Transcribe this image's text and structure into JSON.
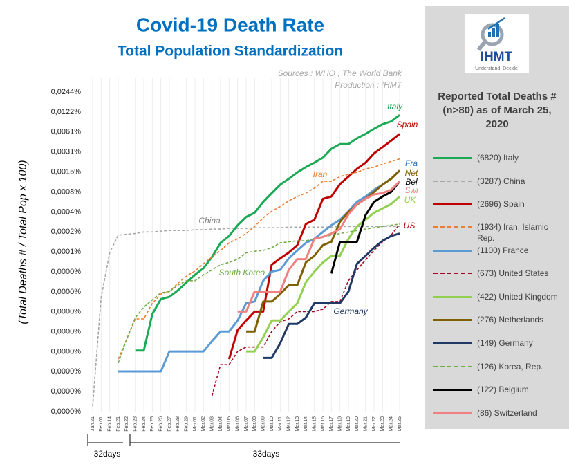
{
  "header": {
    "title": "Covid-19 Death Rate",
    "subtitle": "Total Population Standardization",
    "sources": "Sources : WHO ; The World Bank",
    "production": "Production : IHMT"
  },
  "logo": {
    "name": "IHMT",
    "tagline": "Understand, Decide"
  },
  "legend_title": "Reported Total Deaths # (n>80) as of March 25, 2020",
  "periods": [
    "32days",
    "33days"
  ],
  "chart_data": {
    "type": "line",
    "log_scale": true,
    "grid": "x",
    "y_label": "(Total Deaths # / Total Pop x 100)",
    "categories": [
      "Jan.21",
      "Feb.01",
      "Feb.14",
      "Feb.21",
      "Feb.22",
      "Feb.23",
      "Feb.24",
      "Feb.25",
      "Feb.26",
      "Feb.27",
      "Feb.28",
      "Feb.29",
      "Mar.01",
      "Mar.02",
      "Mar.03",
      "Mar.04",
      "Mar.05",
      "Mar.06",
      "Mar.07",
      "Mar.08",
      "Mar.09",
      "Mar.10",
      "Mar.11",
      "Mar.12",
      "Mar.13",
      "Mar.14",
      "Mar.15",
      "Mar.16",
      "Mar.17",
      "Mar.18",
      "Mar.19",
      "Mar.20",
      "Mar.21",
      "Mar.22",
      "Mar.23",
      "Mar.24",
      "Mar.25"
    ],
    "ylim": [
      3.73e-07,
      0.0244
    ],
    "yticks": [
      {
        "value": 0.0244,
        "label": "0,0244%"
      },
      {
        "value": 0.0122,
        "label": "0,0122%"
      },
      {
        "value": 0.0061,
        "label": "0,0061%"
      },
      {
        "value": 0.00305,
        "label": "0,0031%"
      },
      {
        "value": 0.001525,
        "label": "0,0015%"
      },
      {
        "value": 0.00076,
        "label": "0,0008%"
      },
      {
        "value": 0.00038,
        "label": "0,0004%"
      },
      {
        "value": 0.00019,
        "label": "0,0002%"
      },
      {
        "value": 9.5e-05,
        "label": "0,0001%"
      },
      {
        "value": 4.77e-05,
        "label": "0,0000%"
      },
      {
        "value": 2.38e-05,
        "label": "0,0000%"
      },
      {
        "value": 1.19e-05,
        "label": "0,0000%"
      },
      {
        "value": 5.96e-06,
        "label": "0,0000%"
      },
      {
        "value": 2.98e-06,
        "label": "0,0000%"
      },
      {
        "value": 1.49e-06,
        "label": "0,0000%"
      },
      {
        "value": 7.45e-07,
        "label": "0,0000%"
      },
      {
        "value": 3.73e-07,
        "label": "0,0000%"
      }
    ],
    "series": [
      {
        "name": "(6820) Italy",
        "color": "#1aaa55",
        "dashed": false,
        "values": [
          null,
          null,
          null,
          null,
          null,
          3.1e-06,
          3.1e-06,
          1.1e-05,
          1.85e-05,
          2e-05,
          2.5e-05,
          3.3e-05,
          4.3e-05,
          5.4e-05,
          8e-05,
          0.00013,
          0.000165,
          0.00024,
          0.00032,
          0.00037,
          0.00054,
          0.00073,
          0.00098,
          0.0012,
          0.0015,
          0.0018,
          0.0021,
          0.0025,
          0.0034,
          0.004,
          0.004,
          0.0049,
          0.0057,
          0.0068,
          0.008,
          0.0088,
          0.011
        ]
      },
      {
        "name": "(3287) China",
        "color": "#a6a6a6",
        "dashed": true,
        "values": [
          4.5e-07,
          1.95e-05,
          9.3e-05,
          0.00017,
          0.000175,
          0.00018,
          0.00019,
          0.00019,
          0.000195,
          0.0002,
          0.0002,
          0.0002,
          0.000205,
          0.000205,
          0.00021,
          0.00021,
          0.000215,
          0.000215,
          0.000215,
          0.00022,
          0.00022,
          0.00022,
          0.00022,
          0.000225,
          0.000225,
          0.000225,
          0.000225,
          0.000225,
          0.000225,
          0.00023,
          0.00023,
          0.00023,
          0.00023,
          0.00023,
          0.00023,
          0.00023,
          0.00023
        ]
      },
      {
        "name": "(2696) Spain",
        "color": "#c00000",
        "dashed": false,
        "values": [
          null,
          null,
          null,
          null,
          null,
          null,
          null,
          null,
          null,
          null,
          null,
          null,
          null,
          null,
          null,
          null,
          2.3e-06,
          6.3e-06,
          8.8e-06,
          1.2e-05,
          1.2e-05,
          6.1e-05,
          7.6e-05,
          9.3e-05,
          0.00012,
          0.00025,
          0.00029,
          0.0006,
          0.00065,
          0.001,
          0.0013,
          0.0017,
          0.0021,
          0.0029,
          0.0036,
          0.0045,
          0.0057
        ]
      },
      {
        "name": "(1934) Iran, Islamic Rep.",
        "color": "#ed7d31",
        "dashed": true,
        "values": [
          null,
          null,
          null,
          2.3e-06,
          4.6e-06,
          9.3e-06,
          9.3e-06,
          1.6e-05,
          2.2e-05,
          2.4e-05,
          3.2e-05,
          4.1e-05,
          4.9e-05,
          6.3e-05,
          8e-05,
          0.0001,
          0.00013,
          0.00015,
          0.00018,
          0.00023,
          0.00031,
          0.00039,
          0.00046,
          0.00056,
          0.00065,
          0.00073,
          0.00087,
          0.0011,
          0.0011,
          0.0013,
          0.0014,
          0.0015,
          0.0017,
          0.0018,
          0.002,
          0.0022,
          0.0024
        ]
      },
      {
        "name": "(1100) France",
        "color": "#5b9bd5",
        "dashed": false,
        "values": [
          null,
          null,
          null,
          1.5e-06,
          1.5e-06,
          1.5e-06,
          1.5e-06,
          1.5e-06,
          1.5e-06,
          3e-06,
          3e-06,
          3e-06,
          3e-06,
          3e-06,
          4.3e-06,
          6e-06,
          6e-06,
          8.8e-06,
          1.6e-05,
          1.7e-05,
          3.5e-05,
          4.8e-05,
          5.1e-05,
          7.6e-05,
          0.0001,
          0.00013,
          0.00015,
          0.00019,
          0.00024,
          0.00029,
          0.00039,
          0.00054,
          0.00065,
          0.00082,
          0.00098,
          0.0012,
          0.0016
        ]
      },
      {
        "name": "(673) United States",
        "color": "#a50021",
        "dashed": true,
        "values": [
          null,
          null,
          null,
          null,
          null,
          null,
          null,
          null,
          null,
          null,
          null,
          null,
          null,
          null,
          6.5e-07,
          1.9e-06,
          1.9e-06,
          3e-06,
          3.5e-06,
          3.5e-06,
          3.5e-06,
          6e-06,
          8.4e-06,
          9.3e-06,
          1.2e-05,
          1.2e-05,
          1.2e-05,
          1.3e-05,
          1.7e-05,
          1.7e-05,
          3.5e-05,
          5.1e-05,
          7.2e-05,
          0.0001,
          0.000135,
          0.00017,
          0.00025
        ]
      },
      {
        "name": "(422) United Kingdom",
        "color": "#92d050",
        "dashed": false,
        "values": [
          null,
          null,
          null,
          null,
          null,
          null,
          null,
          null,
          null,
          null,
          null,
          null,
          null,
          null,
          null,
          null,
          null,
          null,
          3e-06,
          3e-06,
          4.9e-06,
          8.8e-06,
          8.8e-06,
          1.2e-05,
          1.6e-05,
          3.3e-05,
          4.8e-05,
          6.6e-05,
          8.3e-05,
          8.3e-05,
          0.00015,
          0.00023,
          0.00029,
          0.00037,
          0.00043,
          0.0005,
          0.00065
        ]
      },
      {
        "name": "(276) Netherlands",
        "color": "#7f6000",
        "dashed": false,
        "values": [
          null,
          null,
          null,
          null,
          null,
          null,
          null,
          null,
          null,
          null,
          null,
          null,
          null,
          null,
          null,
          null,
          null,
          null,
          6e-06,
          6e-06,
          1.7e-05,
          1.7e-05,
          2.2e-05,
          3e-05,
          3e-05,
          6.6e-05,
          8.3e-05,
          0.00012,
          0.000135,
          0.00027,
          0.00038,
          0.00049,
          0.0006,
          0.00076,
          0.00098,
          0.0012,
          0.0016
        ]
      },
      {
        "name": "(149) Germany",
        "color": "#1f3864",
        "dashed": false,
        "values": [
          null,
          null,
          null,
          null,
          null,
          null,
          null,
          null,
          null,
          null,
          null,
          null,
          null,
          null,
          null,
          null,
          null,
          null,
          null,
          null,
          2.4e-06,
          2.4e-06,
          4e-06,
          7.8e-06,
          7.8e-06,
          9.7e-06,
          1.6e-05,
          1.6e-05,
          1.6e-05,
          1.6e-05,
          2.4e-05,
          6.3e-05,
          8.3e-05,
          0.00011,
          0.00014,
          0.000165,
          0.00018
        ]
      },
      {
        "name": "(126) Korea, Rep.",
        "color": "#70ad47",
        "dashed": true,
        "values": [
          null,
          null,
          null,
          2e-06,
          4.6e-06,
          9.7e-06,
          1.4e-05,
          1.8e-05,
          2.3e-05,
          2.4e-05,
          3e-05,
          3.5e-05,
          3.5e-05,
          4.3e-05,
          5.1e-05,
          6.1e-05,
          6.6e-05,
          7.4e-05,
          9.2e-05,
          9.7e-05,
          0.0001,
          0.00011,
          0.00013,
          0.000135,
          0.00014,
          0.00014,
          0.00015,
          0.00016,
          0.00017,
          0.00018,
          0.00019,
          0.0002,
          0.00021,
          0.00022,
          0.00023,
          0.00024,
          0.00025
        ]
      },
      {
        "name": "(122) Belgium",
        "color": "#000000",
        "dashed": false,
        "values": [
          null,
          null,
          null,
          null,
          null,
          null,
          null,
          null,
          null,
          null,
          null,
          null,
          null,
          null,
          null,
          null,
          null,
          null,
          null,
          null,
          null,
          null,
          null,
          null,
          null,
          null,
          null,
          null,
          4.5e-05,
          0.000135,
          0.000135,
          0.000135,
          0.00034,
          0.00054,
          0.00065,
          0.00076,
          0.0011
        ]
      },
      {
        "name": "(86) Switzerland",
        "color": "#f08080",
        "dashed": false,
        "values": [
          null,
          null,
          null,
          null,
          null,
          null,
          null,
          null,
          null,
          null,
          null,
          null,
          null,
          null,
          null,
          null,
          null,
          1.2e-05,
          1.2e-05,
          2.4e-05,
          2.4e-05,
          2.4e-05,
          2.4e-05,
          5.1e-05,
          7.4e-05,
          7.4e-05,
          0.00015,
          0.00016,
          0.00018,
          0.00021,
          0.00035,
          0.0005,
          0.0006,
          0.0007,
          0.00073,
          0.00082,
          0.0011
        ]
      }
    ],
    "annotations": [
      {
        "text": "Italy",
        "color": "#1aaa55"
      },
      {
        "text": "Spain",
        "color": "#c00000"
      },
      {
        "text": "Iran",
        "color": "#ed7d31"
      },
      {
        "text": "Fra",
        "color": "#2e75b6"
      },
      {
        "text": "Net",
        "color": "#7f6000"
      },
      {
        "text": "Bel",
        "color": "#000000"
      },
      {
        "text": "Swi",
        "color": "#f08080"
      },
      {
        "text": "UK",
        "color": "#92d050"
      },
      {
        "text": "US",
        "color": "#c00000"
      },
      {
        "text": "China",
        "color": "#808080"
      },
      {
        "text": "South Korea",
        "color": "#70ad47"
      },
      {
        "text": "Germany",
        "color": "#1f3864"
      }
    ]
  }
}
